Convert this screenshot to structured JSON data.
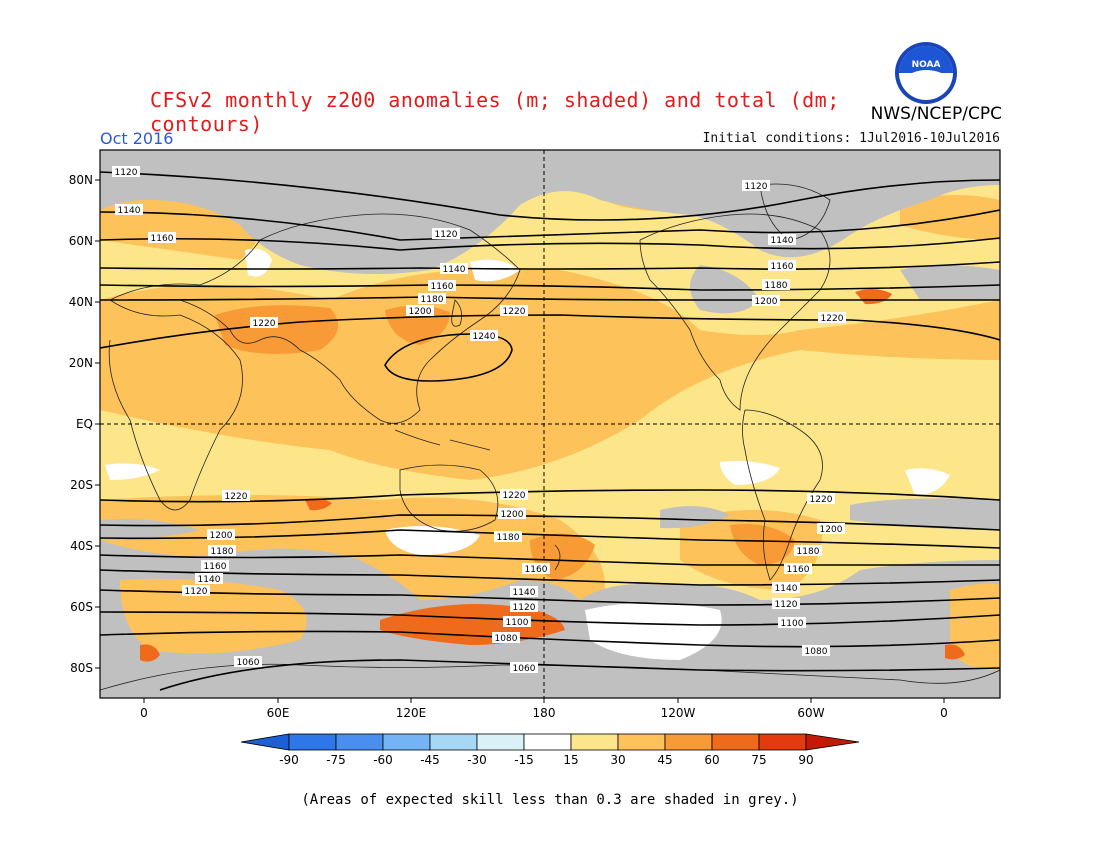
{
  "title": "CFSv2 monthly z200 anomalies (m; shaded) and total (dm; contours)",
  "agency": "NWS/NCEP/CPC",
  "logo_text": "NOAA",
  "month": "Oct 2016",
  "initial_conditions": "Initial conditions: 1Jul2016-10Jul2016",
  "lat_labels": [
    "80N",
    "60N",
    "40N",
    "20N",
    "EQ",
    "20S",
    "40S",
    "60S",
    "80S"
  ],
  "lon_labels": [
    "0",
    "60E",
    "120E",
    "180",
    "120W",
    "60W",
    "0"
  ],
  "contour_labels": [
    "1060",
    "1080",
    "1100",
    "1120",
    "1140",
    "1160",
    "1180",
    "1200",
    "1220",
    "1240"
  ],
  "colorbar": {
    "ticks": [
      "-90",
      "-75",
      "-60",
      "-45",
      "-30",
      "-15",
      "15",
      "30",
      "45",
      "60",
      "75",
      "90"
    ],
    "colors": [
      "#1e5fd6",
      "#2f76e8",
      "#4a8fef",
      "#74b3f4",
      "#a6d8f6",
      "#d8f2f8",
      "#ffffff",
      "#fde68a",
      "#fdc25a",
      "#f89a35",
      "#f06a1c",
      "#e33b0e",
      "#c21a06"
    ],
    "colors_meaning": "negative blue to positive red; grey = low skill"
  },
  "skill_note": "(Areas of expected skill less than 0.3 are shaded in grey.)",
  "colors": {
    "title": "#e41a1c",
    "month": "#2a5bd7",
    "grey_low_skill": "#c0c0c0"
  }
}
